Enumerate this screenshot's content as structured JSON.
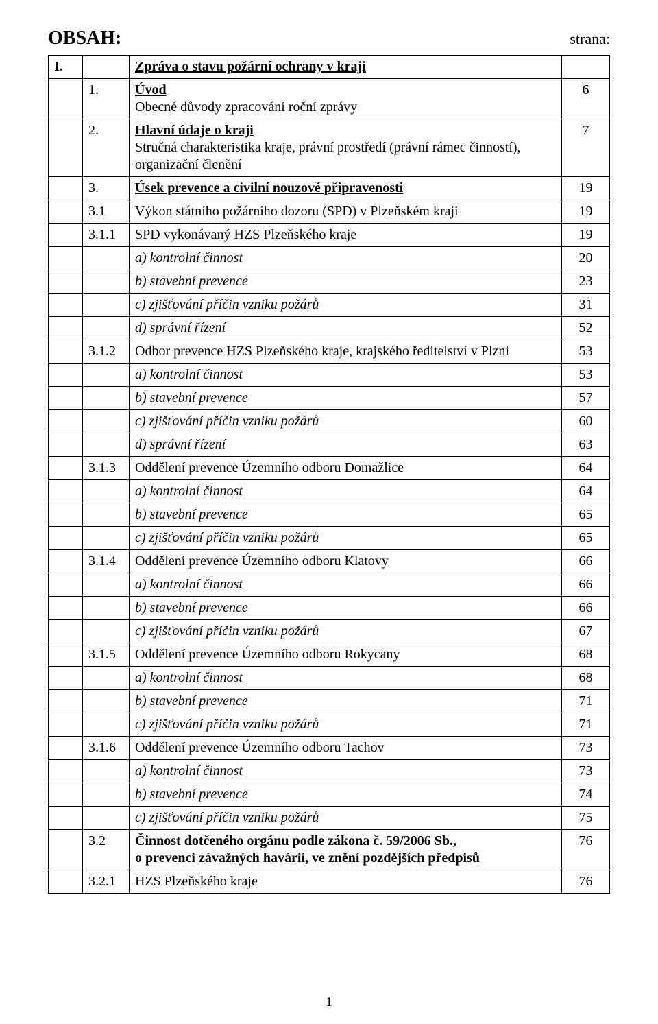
{
  "header": {
    "title": "OBSAH:",
    "page_label": "strana:"
  },
  "footer": {
    "page_number": "1"
  },
  "toc": [
    {
      "col1": "I.",
      "col2": "",
      "text": "Zpráva o stavu požární ochrany v kraji",
      "page": "",
      "bold": true,
      "underline": true
    },
    {
      "col1": "",
      "col2": "1.",
      "text": "Úvod\nObecné důvody zpracování roční zprávy",
      "page": "6",
      "mixed_title": true
    },
    {
      "col1": "",
      "col2": "2.",
      "text": "Hlavní údaje o kraji\nStručná charakteristika kraje, právní prostředí (právní rámec činností), organizační členění",
      "page": "7",
      "mixed_title": true
    },
    {
      "col1": "",
      "col2": "3.",
      "text": "Úsek prevence a civilní nouzové připravenosti",
      "page": "19",
      "bold": true,
      "underline": true
    },
    {
      "col1": "",
      "col2": "3.1",
      "text": "Výkon státního požárního dozoru (SPD) v Plzeňském kraji",
      "page": "19"
    },
    {
      "col1": "",
      "col2": "3.1.1",
      "text": "SPD vykonávaný HZS Plzeňského kraje",
      "page": "19"
    },
    {
      "col1": "",
      "col2": "",
      "text": "a) kontrolní činnost",
      "page": "20",
      "italic": true
    },
    {
      "col1": "",
      "col2": "",
      "text": "b) stavební prevence",
      "page": "23",
      "italic": true
    },
    {
      "col1": "",
      "col2": "",
      "text": "c)  zjišťování příčin vzniku požárů",
      "page": "31",
      "italic": true
    },
    {
      "col1": "",
      "col2": "",
      "text": "d)  správní řízení",
      "page": "52",
      "italic": true
    },
    {
      "col1": "",
      "col2": "3.1.2",
      "text": "Odbor prevence HZS Plzeňského kraje, krajského ředitelství v Plzni",
      "page": "53"
    },
    {
      "col1": "",
      "col2": "",
      "text": "a)  kontrolní činnost",
      "page": "53",
      "italic": true
    },
    {
      "col1": "",
      "col2": "",
      "text": "b)  stavební prevence",
      "page": "57",
      "italic": true
    },
    {
      "col1": "",
      "col2": "",
      "text": "c)  zjišťování příčin vzniku požárů",
      "page": "60",
      "italic": true
    },
    {
      "col1": "",
      "col2": "",
      "text": "d)  správní řízení",
      "page": "63",
      "italic": true
    },
    {
      "col1": "",
      "col2": "3.1.3",
      "text": "Oddělení prevence Územního odboru Domažlice",
      "page": "64"
    },
    {
      "col1": "",
      "col2": "",
      "text": "a)  kontrolní činnost",
      "page": "64",
      "italic": true
    },
    {
      "col1": "",
      "col2": "",
      "text": "b)  stavební prevence",
      "page": "65",
      "italic": true
    },
    {
      "col1": "",
      "col2": "",
      "text": "c)  zjišťování příčin vzniku požárů",
      "page": "65",
      "italic": true
    },
    {
      "col1": "",
      "col2": "3.1.4",
      "text": "Oddělení prevence Územního odboru Klatovy",
      "page": "66"
    },
    {
      "col1": "",
      "col2": "",
      "text": "a)  kontrolní činnost",
      "page": "66",
      "italic": true
    },
    {
      "col1": "",
      "col2": "",
      "text": "b)  stavební prevence",
      "page": "66",
      "italic": true
    },
    {
      "col1": "",
      "col2": "",
      "text": "c)  zjišťování příčin vzniku požárů",
      "page": "67",
      "italic": true
    },
    {
      "col1": "",
      "col2": "3.1.5",
      "text": "Oddělení prevence Územního odboru Rokycany",
      "page": "68"
    },
    {
      "col1": "",
      "col2": "",
      "text": "a)  kontrolní činnost",
      "page": "68",
      "italic": true
    },
    {
      "col1": "",
      "col2": "",
      "text": "b)  stavební prevence",
      "page": "71",
      "italic": true
    },
    {
      "col1": "",
      "col2": "",
      "text": "c)  zjišťování příčin vzniku požárů",
      "page": "71",
      "italic": true
    },
    {
      "col1": "",
      "col2": "3.1.6",
      "text": "Oddělení prevence Územního odboru Tachov",
      "page": "73"
    },
    {
      "col1": "",
      "col2": "",
      "text": "a)  kontrolní činnost",
      "page": "73",
      "italic": true
    },
    {
      "col1": "",
      "col2": "",
      "text": "b)  stavební prevence",
      "page": "74",
      "italic": true
    },
    {
      "col1": "",
      "col2": "",
      "text": "c)  zjišťování příčin vzniku požárů",
      "page": "75",
      "italic": true
    },
    {
      "col1": "",
      "col2": "3.2",
      "text": "Činnost dotčeného orgánu podle zákona č. 59/2006 Sb.,\no prevenci závažných havárií, ve znění pozdějších předpisů",
      "page": "76",
      "bold": true
    },
    {
      "col1": "",
      "col2": "3.2.1",
      "text": "HZS Plzeňského kraje",
      "page": "76"
    }
  ]
}
